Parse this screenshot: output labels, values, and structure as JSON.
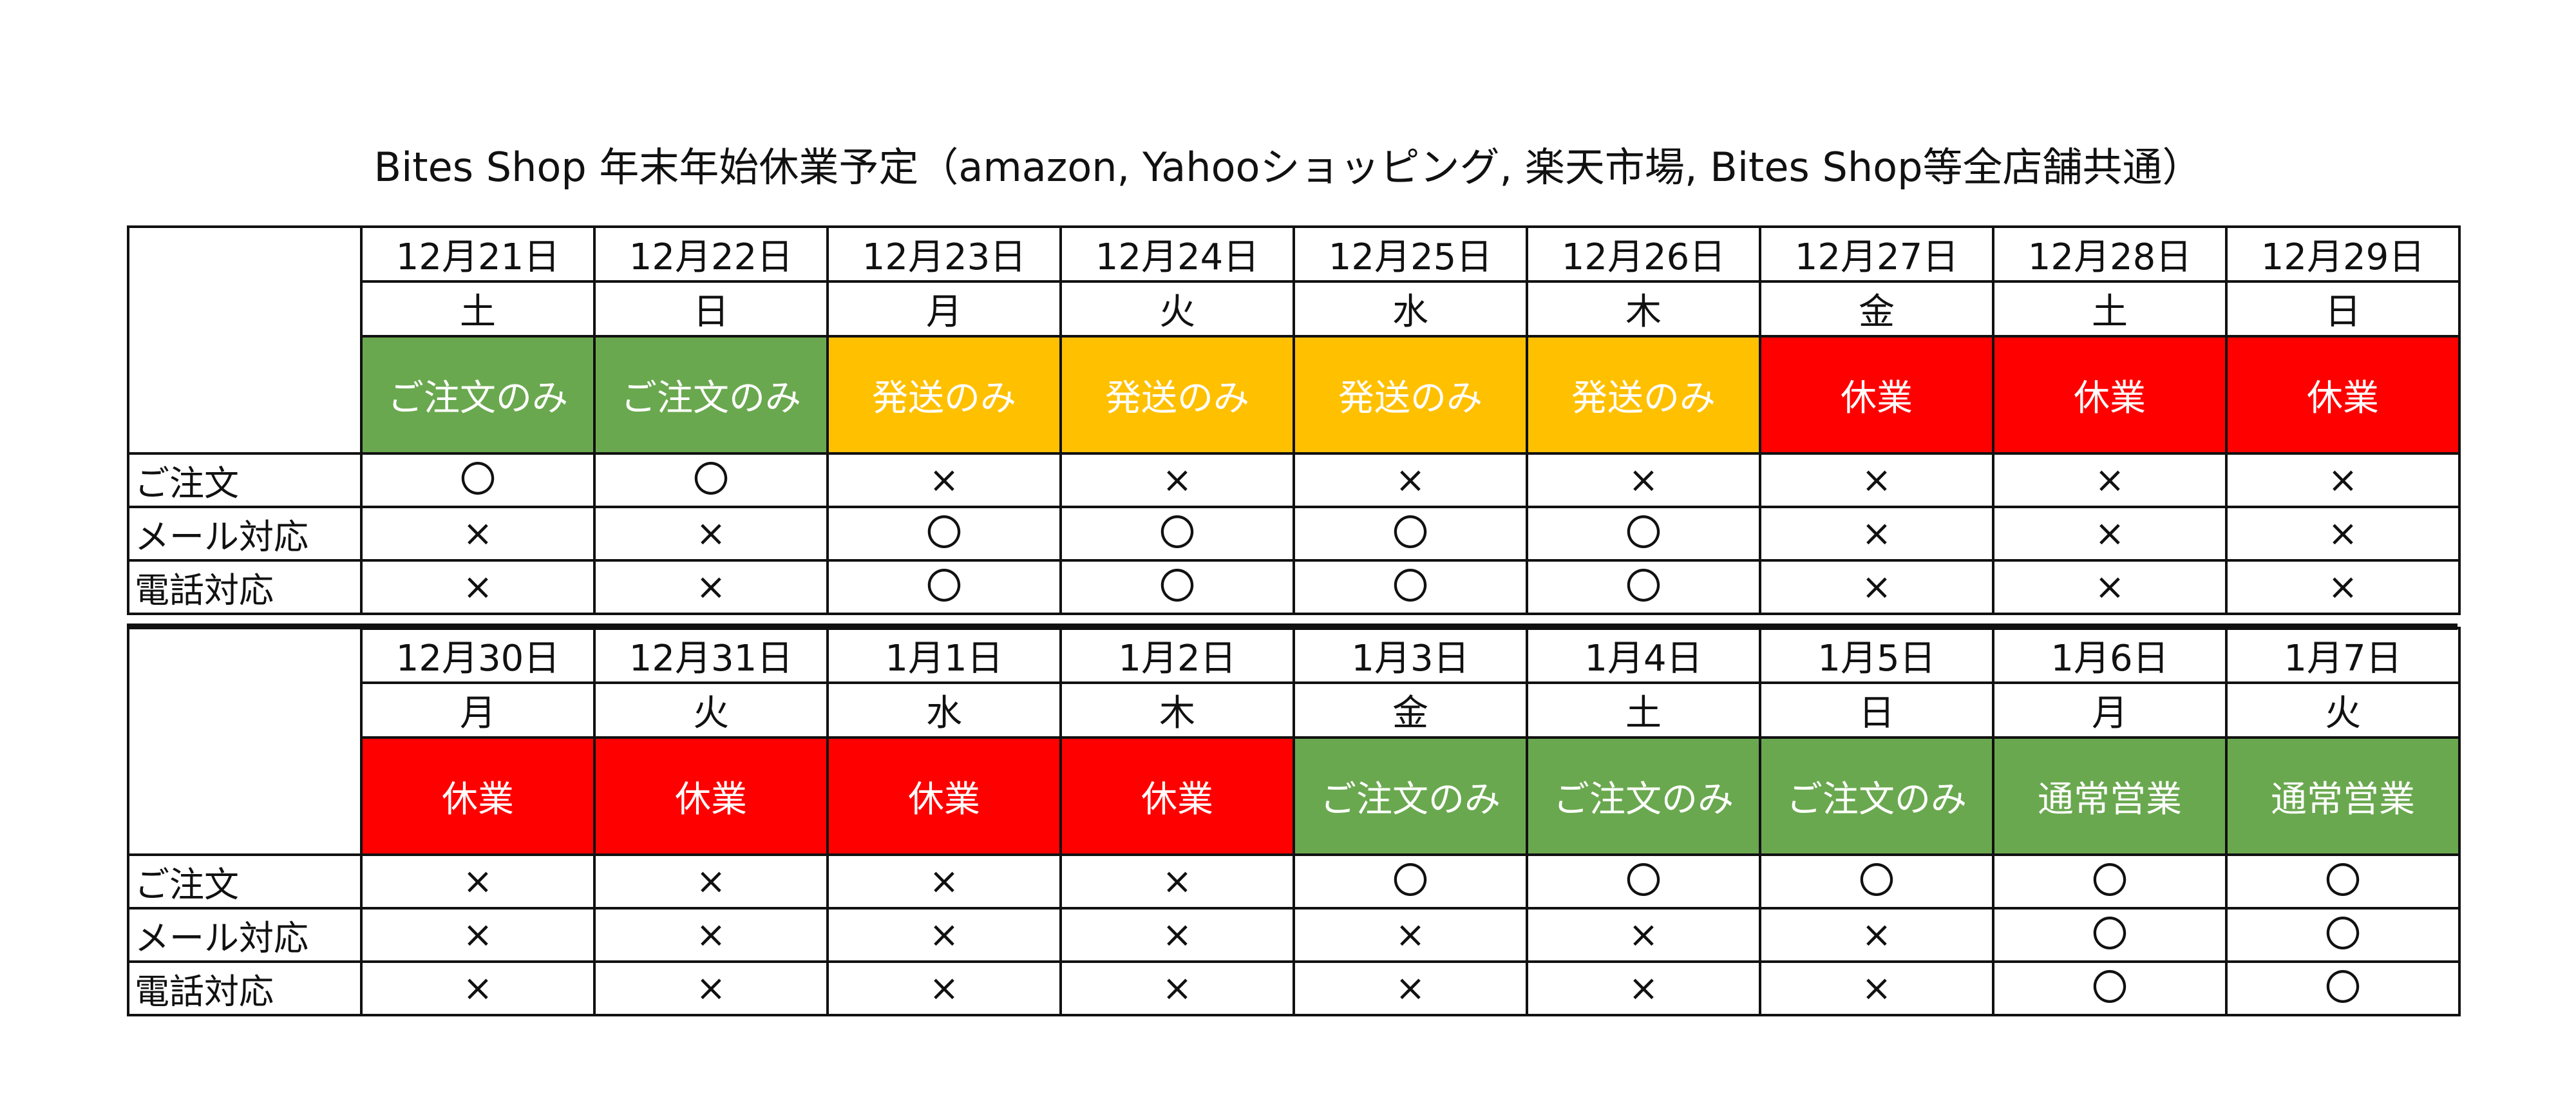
{
  "title": "Bites Shop 年末年始休業予定（amazon, Yahooショッピング, 楽天市場, Bites Shop等全店舗共通）",
  "colors": {
    "order_only": "#6aa84f",
    "ship_only": "#ffc000",
    "closed": "#ff0000",
    "normal": "#6aa84f",
    "border": "#111111"
  },
  "row_labels": {
    "order": "ご注文",
    "mail": "メール対応",
    "phone": "電話対応"
  },
  "marks": {
    "yes": "〇",
    "no": "×"
  },
  "blocks": [
    {
      "dates": [
        "12月21日",
        "12月22日",
        "12月23日",
        "12月24日",
        "12月25日",
        "12月26日",
        "12月27日",
        "12月28日",
        "12月29日"
      ],
      "weekdays": [
        "土",
        "日",
        "月",
        "火",
        "水",
        "木",
        "金",
        "土",
        "日"
      ],
      "statuses": [
        "ご注文のみ",
        "ご注文のみ",
        "発送のみ",
        "発送のみ",
        "発送のみ",
        "発送のみ",
        "休業",
        "休業",
        "休業"
      ],
      "status_types": [
        "order_only",
        "order_only",
        "ship_only",
        "ship_only",
        "ship_only",
        "ship_only",
        "closed",
        "closed",
        "closed"
      ],
      "order": [
        "〇",
        "〇",
        "×",
        "×",
        "×",
        "×",
        "×",
        "×",
        "×"
      ],
      "mail": [
        "×",
        "×",
        "〇",
        "〇",
        "〇",
        "〇",
        "×",
        "×",
        "×"
      ],
      "phone": [
        "×",
        "×",
        "〇",
        "〇",
        "〇",
        "〇",
        "×",
        "×",
        "×"
      ]
    },
    {
      "dates": [
        "12月30日",
        "12月31日",
        "1月1日",
        "1月2日",
        "1月3日",
        "1月4日",
        "1月5日",
        "1月6日",
        "1月7日"
      ],
      "weekdays": [
        "月",
        "火",
        "水",
        "木",
        "金",
        "土",
        "日",
        "月",
        "火"
      ],
      "statuses": [
        "休業",
        "休業",
        "休業",
        "休業",
        "ご注文のみ",
        "ご注文のみ",
        "ご注文のみ",
        "通常営業",
        "通常営業"
      ],
      "status_types": [
        "closed",
        "closed",
        "closed",
        "closed",
        "order_only",
        "order_only",
        "order_only",
        "normal",
        "normal"
      ],
      "order": [
        "×",
        "×",
        "×",
        "×",
        "〇",
        "〇",
        "〇",
        "〇",
        "〇"
      ],
      "mail": [
        "×",
        "×",
        "×",
        "×",
        "×",
        "×",
        "×",
        "〇",
        "〇"
      ],
      "phone": [
        "×",
        "×",
        "×",
        "×",
        "×",
        "×",
        "×",
        "〇",
        "〇"
      ]
    }
  ]
}
